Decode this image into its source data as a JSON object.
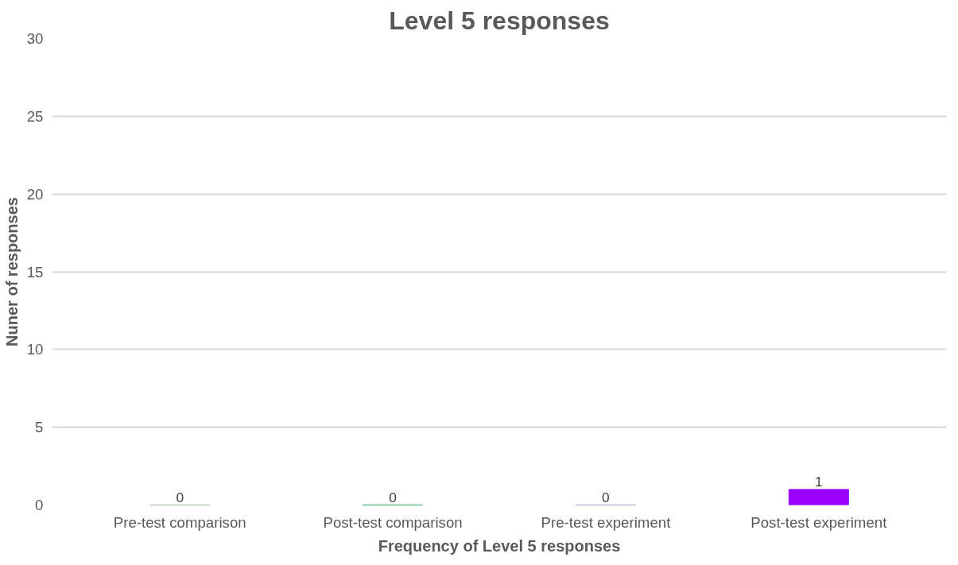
{
  "chart_data": {
    "type": "bar",
    "title": "Level 5 responses",
    "xlabel": "Frequency of Level 5 responses",
    "ylabel": "Nuner of responses",
    "categories": [
      "Pre-test comparison",
      "Post-test comparison",
      "Pre-test experiment",
      "Post-test experiment"
    ],
    "values": [
      0,
      0,
      0,
      1
    ],
    "colors": [
      "#7f9f6a",
      "#00803c",
      "#7b7fcc",
      "#9a00ff"
    ],
    "ylim": [
      0,
      30
    ],
    "yticks": [
      0,
      5,
      10,
      15,
      20,
      25,
      30
    ],
    "grid": "y",
    "data_labels": true
  }
}
